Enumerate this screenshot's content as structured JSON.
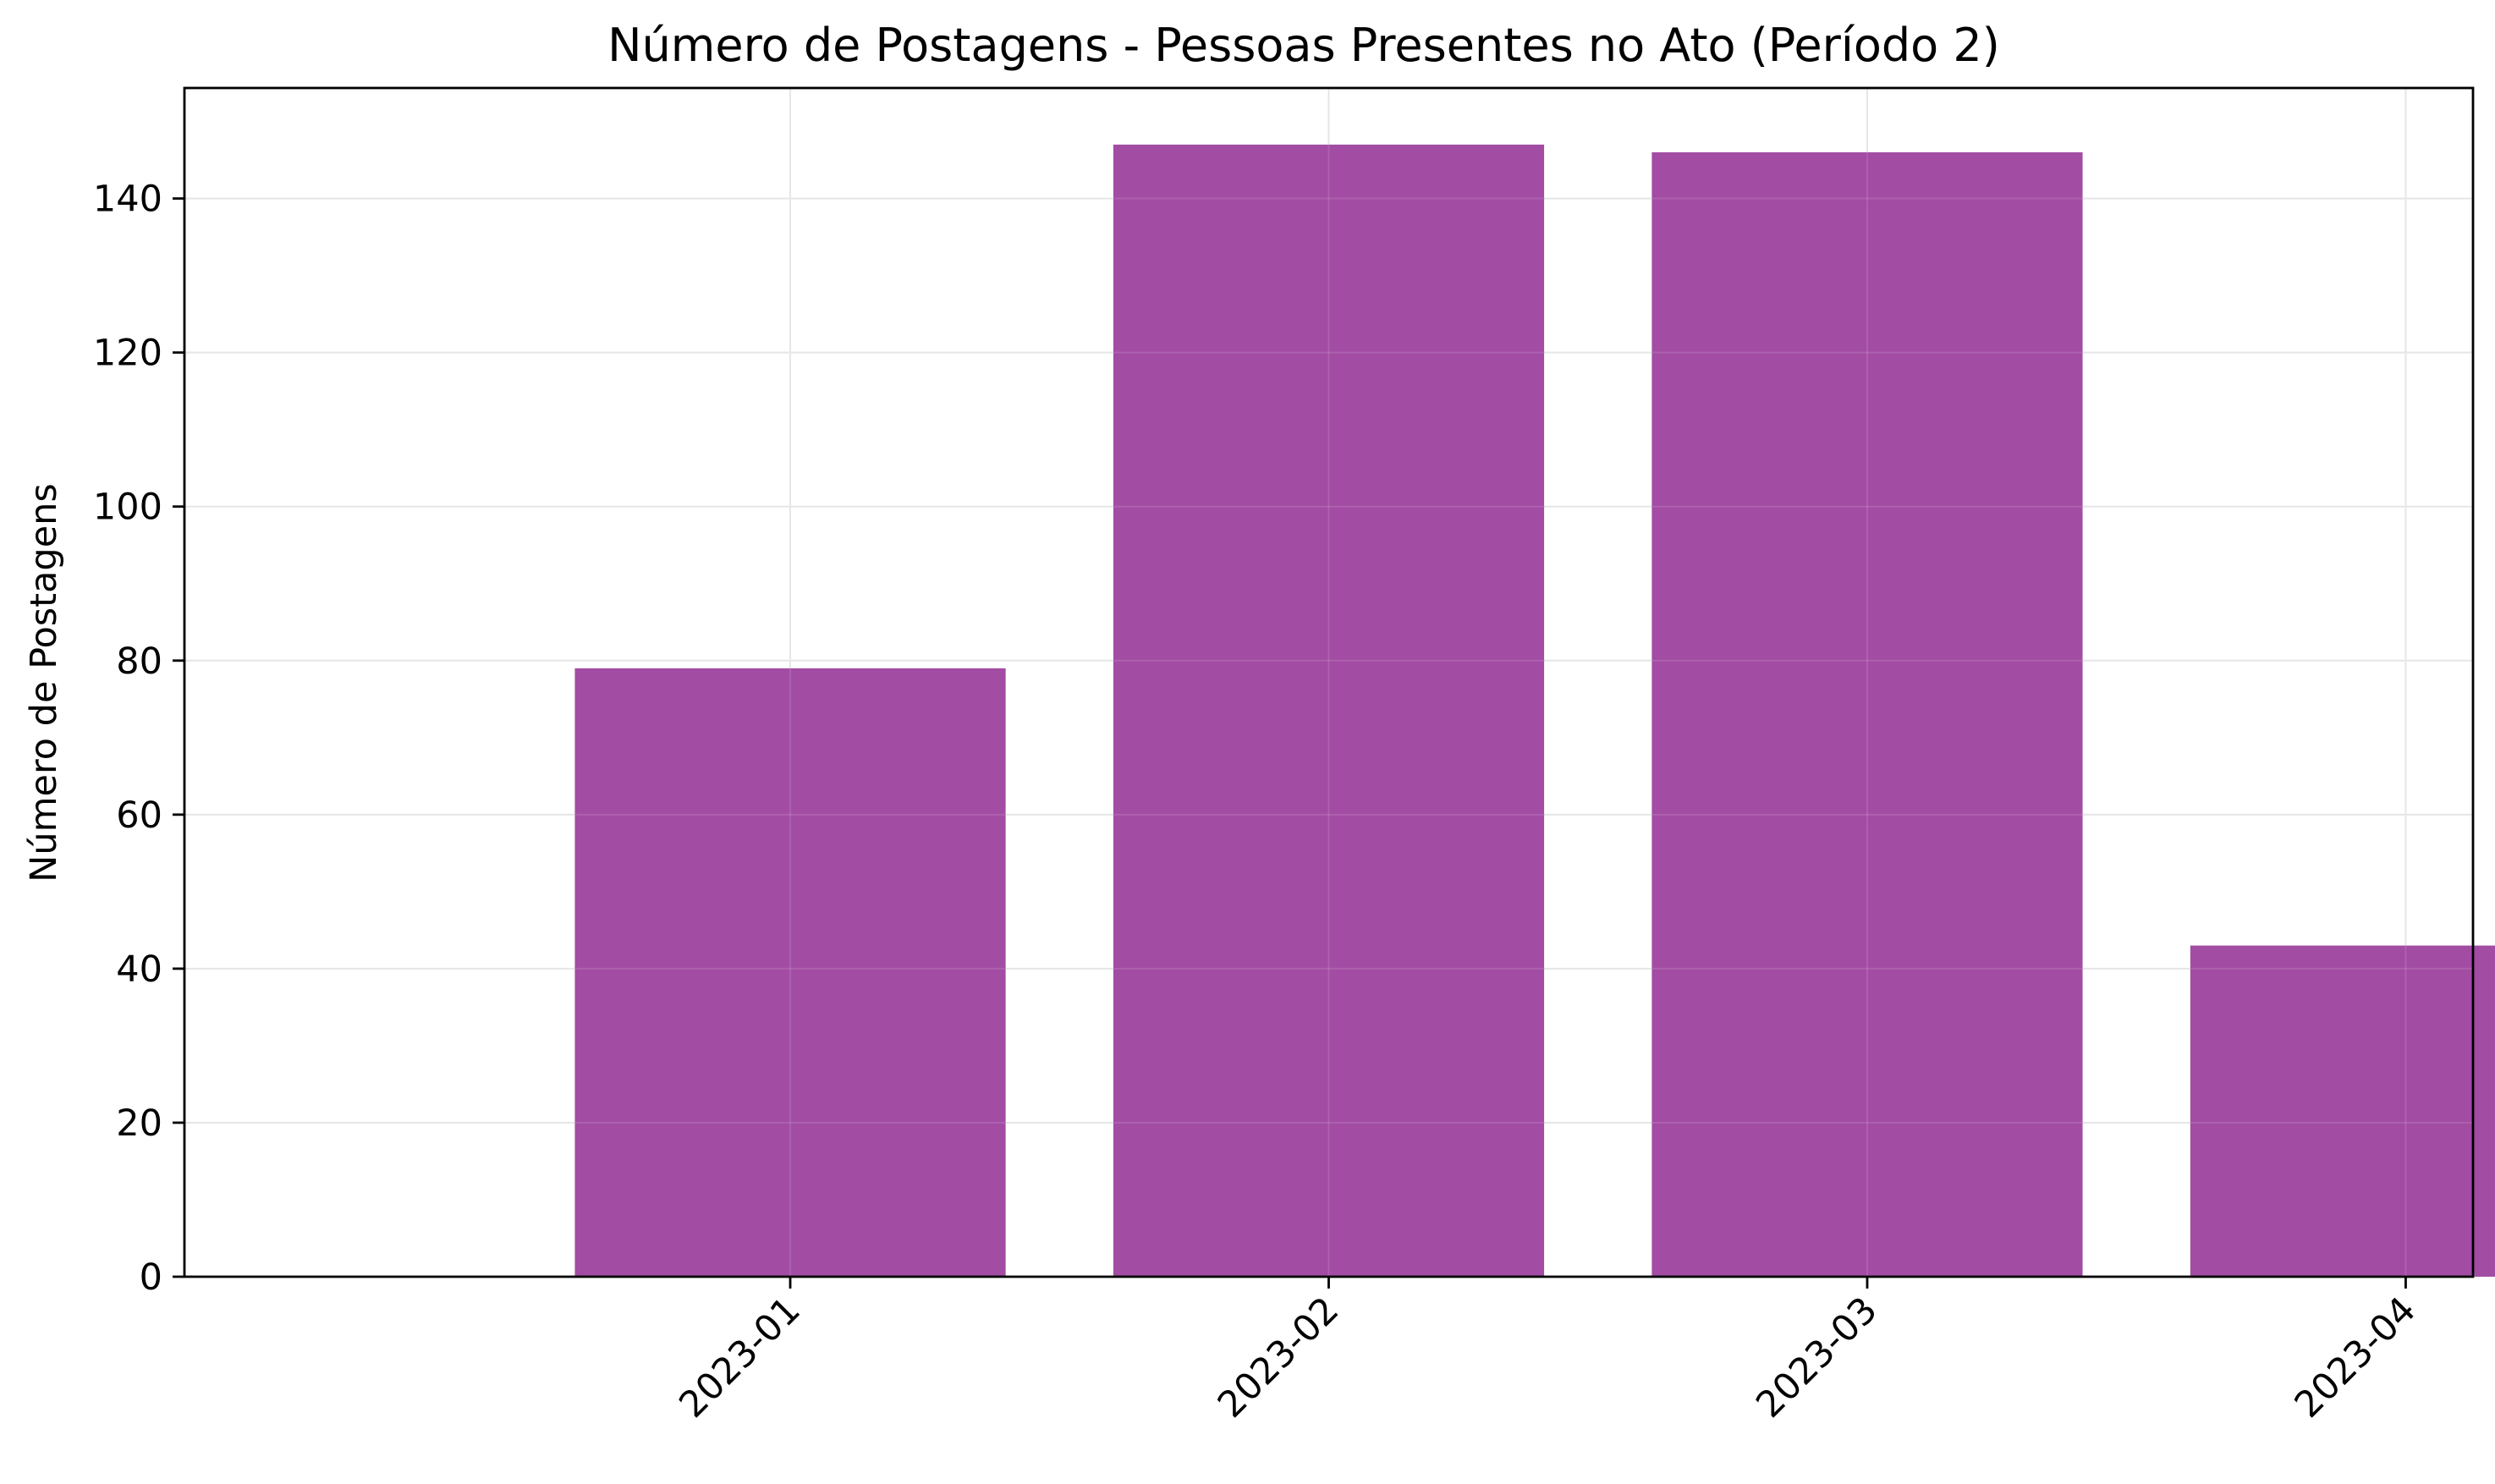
{
  "chart_data": {
    "type": "bar",
    "title": "Número de Postagens - Pessoas Presentes no Ato (Período 2)",
    "xlabel": "",
    "ylabel": "Número de Postagens",
    "categories": [
      "2023-01",
      "2023-02",
      "2023-03",
      "2023-04"
    ],
    "values": [
      79,
      147,
      146,
      43
    ],
    "ylim": [
      0,
      154.35
    ],
    "yticks": [
      0,
      20,
      40,
      60,
      80,
      100,
      120,
      140
    ],
    "ytick_labels": [
      "0",
      "20",
      "40",
      "60",
      "80",
      "100",
      "120",
      "140"
    ],
    "x_tick_rotation_deg": 45,
    "grid": true,
    "legend": "none",
    "colors": {
      "bar": "#a24ca3",
      "grid": "#e3e3e3",
      "axis": "#000000",
      "background": "#ffffff"
    }
  }
}
